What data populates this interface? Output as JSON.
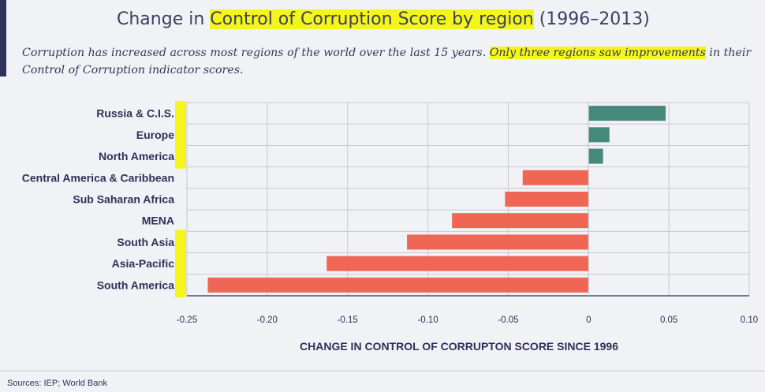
{
  "header": {
    "title_before": "Change in ",
    "title_highlight": "Control of Corruption Score by region",
    "title_after": " (1996–2013)",
    "subtitle_plain": "Corruption has increased across most regions of the world over the last 15 years. ",
    "subtitle_highlight": "Only three regions saw improvements",
    "subtitle_after": " in their Control of Corruption indicator scores."
  },
  "colors": {
    "positive": "#45897a",
    "negative": "#ef6655",
    "highlight": "#f4f51a"
  },
  "chart_data": {
    "type": "bar",
    "orientation": "horizontal",
    "categories": [
      "Russia & C.I.S.",
      "Europe",
      "North America",
      "Central America & Caribbean",
      "Sub Saharan Africa",
      "MENA",
      "South Asia",
      "Asia-Pacific",
      "South America"
    ],
    "values": [
      0.048,
      0.013,
      0.009,
      -0.041,
      -0.052,
      -0.085,
      -0.113,
      -0.163,
      -0.237
    ],
    "xlabel": "CHANGE IN CONTROL OF CORRUPTON SCORE SINCE 1996",
    "xlim": [
      -0.25,
      0.1
    ],
    "xticks": [
      -0.25,
      -0.2,
      -0.15,
      -0.1,
      -0.05,
      0,
      0.05,
      0.1
    ],
    "xtick_labels": [
      "-0.25",
      "-0.20",
      "-0.15",
      "-0.10",
      "-0.05",
      "0",
      "0.05",
      "0.10"
    ],
    "grid": true,
    "highlighted_categories": [
      "Russia & C.I.S.",
      "Europe",
      "North America",
      "South Asia",
      "Asia-Pacific",
      "South America"
    ]
  },
  "footer": {
    "sources": "Sources: IEP; World Bank"
  }
}
